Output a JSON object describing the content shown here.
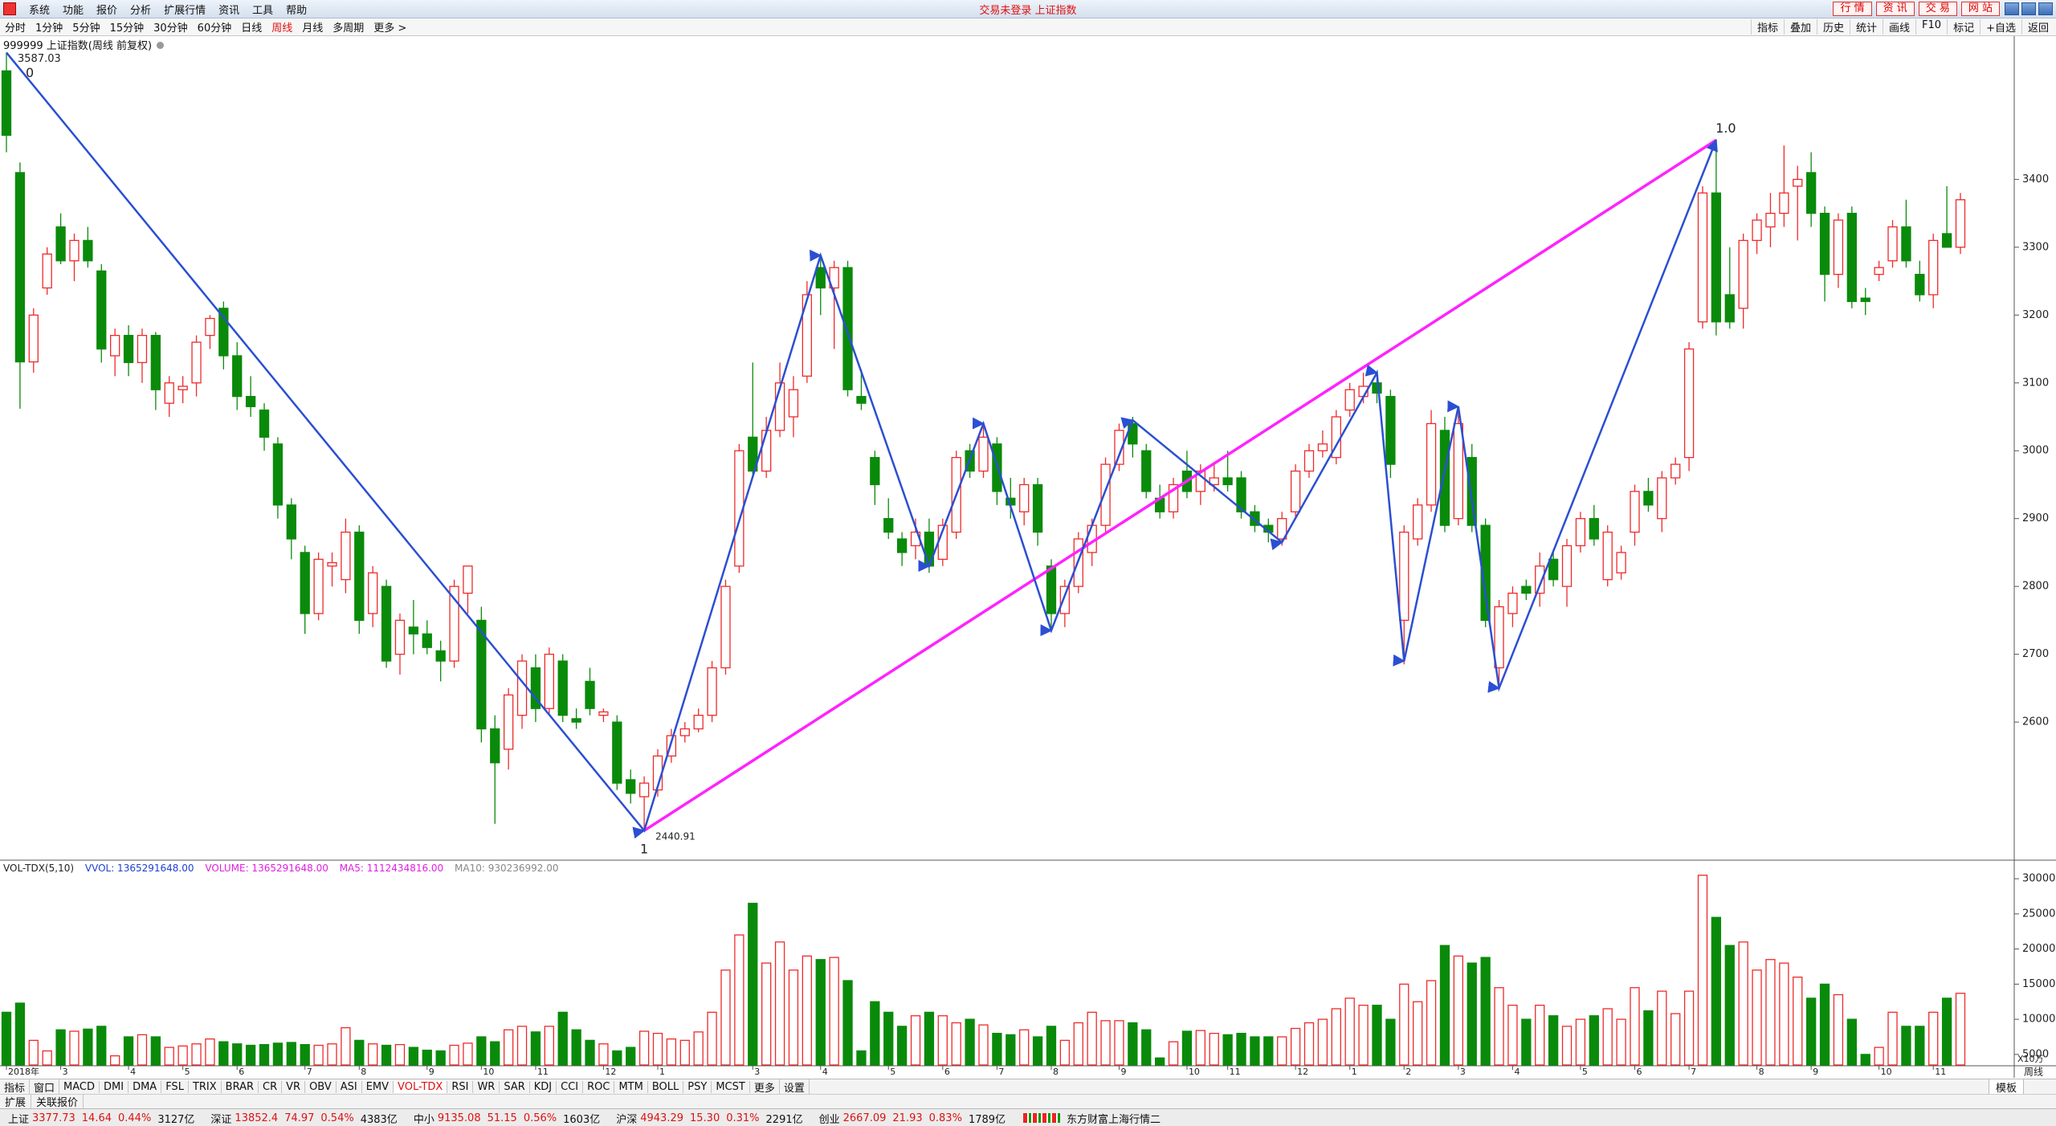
{
  "menu": [
    "系统",
    "功能",
    "报价",
    "分析",
    "扩展行情",
    "资讯",
    "工具",
    "帮助"
  ],
  "title_center": "交易未登录 上证指数",
  "top_buttons": [
    "行 情",
    "资 讯",
    "交 易",
    "网 站"
  ],
  "periods": [
    "分时",
    "1分钟",
    "5分钟",
    "15分钟",
    "30分钟",
    "60分钟",
    "日线",
    "周线",
    "月线",
    "多周期",
    "更多 >"
  ],
  "active_period": 7,
  "tools": [
    "指标",
    "叠加",
    "历史",
    "统计",
    "画线",
    "F10",
    "标记",
    "+自选",
    "返回"
  ],
  "chart_data": [
    {
      "type": "candlestick",
      "title": "999999 上证指数(周线 前复权)",
      "colors": {
        "up": "#ee2a2a",
        "down": "#0a8a0a"
      },
      "open": [
        3560,
        3410,
        3131,
        3240,
        3330,
        3280,
        3310,
        3265,
        3140,
        3170,
        3130,
        3170,
        3070,
        3090,
        3100,
        3170,
        3210,
        3140,
        3080,
        3060,
        3010,
        2920,
        2850,
        2760,
        2830,
        2810,
        2880,
        2760,
        2800,
        2700,
        2740,
        2730,
        2705,
        2690,
        2790,
        2750,
        2590,
        2560,
        2610,
        2680,
        2620,
        2690,
        2605,
        2660,
        2610,
        2600,
        2515,
        2490,
        2500,
        2550,
        2580,
        2590,
        2610,
        2680,
        2830,
        3020,
        2970,
        3030,
        3050,
        3110,
        3270,
        3240,
        3270,
        3080,
        2990,
        2900,
        2870,
        2860,
        2880,
        2840,
        2880,
        3000,
        2970,
        3010,
        2930,
        2910,
        2950,
        2830,
        2760,
        2800,
        2850,
        2890,
        2980,
        3040,
        3000,
        2930,
        2910,
        2970,
        2940,
        2950,
        2960,
        2960,
        2910,
        2890,
        2870,
        2910,
        2970,
        3000,
        2990,
        3060,
        3080,
        3100,
        3080,
        2750,
        2870,
        2920,
        3030,
        2900,
        2990,
        2890,
        2680,
        2760,
        2800,
        2790,
        2840,
        2800,
        2860,
        2900,
        2810,
        2820,
        2880,
        2940,
        2900,
        2960,
        2990,
        3190,
        3380,
        3230,
        3210,
        3310,
        3330,
        3350,
        3390,
        3410,
        3350,
        3260,
        3350,
        3225,
        3260,
        3280,
        3330,
        3260,
        3230,
        3320,
        3300
      ],
      "high": [
        3587,
        3425,
        3210,
        3300,
        3350,
        3320,
        3330,
        3275,
        3180,
        3185,
        3180,
        3175,
        3110,
        3110,
        3170,
        3200,
        3220,
        3160,
        3110,
        3070,
        3020,
        2930,
        2860,
        2850,
        2850,
        2900,
        2890,
        2830,
        2810,
        2760,
        2780,
        2750,
        2720,
        2810,
        2830,
        2770,
        2610,
        2650,
        2700,
        2700,
        2710,
        2700,
        2620,
        2680,
        2620,
        2610,
        2530,
        2520,
        2560,
        2590,
        2600,
        2620,
        2690,
        2810,
        3010,
        3130,
        3050,
        3130,
        3110,
        3250,
        3288,
        3280,
        3280,
        3120,
        3000,
        2930,
        2880,
        2900,
        2900,
        2900,
        3000,
        3010,
        3040,
        3020,
        2960,
        2960,
        2960,
        2840,
        2810,
        2880,
        2900,
        2990,
        3040,
        3050,
        3010,
        2950,
        2960,
        3000,
        2980,
        2980,
        3000,
        2970,
        2920,
        2900,
        2910,
        2980,
        3010,
        3030,
        3060,
        3100,
        3115,
        3110,
        3090,
        2890,
        2930,
        3060,
        3050,
        3065,
        3010,
        2900,
        2780,
        2800,
        2810,
        2850,
        2850,
        2870,
        2910,
        2920,
        2890,
        2860,
        2950,
        2960,
        2970,
        2990,
        3160,
        3390,
        3458,
        3300,
        3320,
        3350,
        3380,
        3450,
        3420,
        3440,
        3360,
        3350,
        3360,
        3240,
        3280,
        3340,
        3370,
        3280,
        3320,
        3390,
        3380
      ],
      "low": [
        3440,
        3062,
        3115,
        3230,
        3275,
        3250,
        3270,
        3130,
        3110,
        3110,
        3100,
        3060,
        3050,
        3070,
        3080,
        3150,
        3120,
        3060,
        3050,
        3000,
        2900,
        2840,
        2730,
        2750,
        2800,
        2790,
        2730,
        2740,
        2680,
        2670,
        2700,
        2700,
        2660,
        2680,
        2760,
        2570,
        2450,
        2530,
        2590,
        2600,
        2610,
        2600,
        2590,
        2610,
        2600,
        2500,
        2480,
        2440,
        2490,
        2540,
        2570,
        2585,
        2600,
        2670,
        2820,
        2960,
        2960,
        3020,
        3020,
        3100,
        3200,
        3150,
        3080,
        3060,
        2920,
        2870,
        2830,
        2840,
        2820,
        2830,
        2870,
        2960,
        2960,
        2920,
        2900,
        2890,
        2860,
        2735,
        2740,
        2790,
        2830,
        2880,
        2970,
        2990,
        2930,
        2900,
        2900,
        2930,
        2920,
        2940,
        2940,
        2900,
        2880,
        2865,
        2860,
        2900,
        2960,
        2990,
        2980,
        3050,
        3070,
        3070,
        2960,
        2685,
        2860,
        2910,
        2880,
        2890,
        2880,
        2740,
        2650,
        2740,
        2780,
        2770,
        2800,
        2770,
        2850,
        2860,
        2800,
        2810,
        2860,
        2910,
        2880,
        2950,
        2970,
        3180,
        3170,
        3180,
        3180,
        3290,
        3300,
        3330,
        3310,
        3330,
        3220,
        3240,
        3210,
        3200,
        3250,
        3270,
        3270,
        3220,
        3210,
        3300,
        3290
      ],
      "close": [
        3465,
        3131,
        3200,
        3290,
        3280,
        3310,
        3280,
        3150,
        3170,
        3130,
        3170,
        3090,
        3100,
        3095,
        3160,
        3195,
        3140,
        3080,
        3065,
        3020,
        2920,
        2870,
        2760,
        2840,
        2835,
        2880,
        2750,
        2820,
        2690,
        2750,
        2730,
        2710,
        2690,
        2800,
        2830,
        2590,
        2540,
        2640,
        2690,
        2620,
        2700,
        2610,
        2600,
        2620,
        2615,
        2510,
        2495,
        2510,
        2550,
        2580,
        2590,
        2610,
        2680,
        2800,
        3000,
        2970,
        3030,
        3100,
        3090,
        3230,
        3240,
        3270,
        3090,
        3070,
        2950,
        2880,
        2850,
        2880,
        2830,
        2890,
        2990,
        2970,
        3020,
        2940,
        2920,
        2950,
        2880,
        2760,
        2800,
        2870,
        2890,
        2980,
        3030,
        3010,
        2940,
        2910,
        2950,
        2940,
        2970,
        2960,
        2950,
        2910,
        2890,
        2880,
        2900,
        2970,
        3000,
        3010,
        3050,
        3090,
        3095,
        3085,
        2980,
        2880,
        2920,
        3040,
        2890,
        3040,
        2890,
        2750,
        2770,
        2790,
        2790,
        2830,
        2810,
        2860,
        2900,
        2870,
        2880,
        2850,
        2940,
        2920,
        2960,
        2980,
        3150,
        3380,
        3190,
        3190,
        3310,
        3340,
        3350,
        3380,
        3400,
        3350,
        3260,
        3340,
        3220,
        3220,
        3270,
        3330,
        3280,
        3230,
        3310,
        3300,
        3370
      ],
      "ylim": [
        2400,
        3610
      ],
      "yticks": [
        2600,
        2700,
        2800,
        2900,
        3000,
        3100,
        3200,
        3300,
        3400
      ],
      "drawings": {
        "zigzag": {
          "color": "#2b4fd2",
          "x": [
            0,
            47,
            60,
            68,
            72,
            77,
            83,
            94,
            101,
            103,
            107,
            110,
            126
          ],
          "y": [
            3587,
            2440,
            3288,
            2830,
            3040,
            2735,
            3045,
            2865,
            3115,
            2690,
            3065,
            2650,
            3458
          ]
        },
        "trend": {
          "color": "#ff22ff",
          "x": [
            47,
            126
          ],
          "y": [
            2440,
            3458
          ]
        }
      },
      "annotations": {
        "high_label": "3587.03",
        "low_label": "2440.91",
        "wave_start": "0",
        "wave_low": "1",
        "wave_end": "1.0"
      }
    },
    {
      "type": "bar",
      "header": {
        "name": "VOL-TDX(5,10)",
        "vvol": "VVOL: 1365291648.00",
        "volume": "VOLUME: 1365291648.00",
        "ma5": "MA5: 1112434816.00",
        "ma10": "MA10: 930236992.00"
      },
      "values": [
        11000,
        12300,
        7000,
        5500,
        8500,
        8300,
        8600,
        9000,
        4800,
        7500,
        7800,
        7500,
        6000,
        6200,
        6500,
        7200,
        6800,
        6500,
        6300,
        6400,
        6600,
        6700,
        6400,
        6300,
        6500,
        8800,
        7000,
        6500,
        6300,
        6400,
        6000,
        5600,
        5500,
        6300,
        6600,
        7500,
        6800,
        8500,
        9000,
        8200,
        9000,
        11000,
        8500,
        7000,
        6500,
        5500,
        6000,
        8300,
        8000,
        7200,
        7000,
        8200,
        11000,
        17000,
        22000,
        26500,
        18000,
        21000,
        17000,
        19000,
        18500,
        18800,
        15500,
        5500,
        12500,
        11000,
        9000,
        10500,
        11000,
        10500,
        9500,
        10000,
        9200,
        8000,
        7800,
        8500,
        7500,
        9000,
        7000,
        9500,
        11000,
        9800,
        9800,
        9500,
        8500,
        4500,
        6800,
        8300,
        8400,
        8000,
        7800,
        8000,
        7500,
        7500,
        7500,
        8700,
        9500,
        10000,
        11500,
        13000,
        12000,
        12000,
        10000,
        15000,
        12500,
        15500,
        20500,
        19000,
        18000,
        18800,
        14500,
        12000,
        10000,
        12000,
        10500,
        9000,
        10000,
        10500,
        11500,
        10000,
        14500,
        11200,
        14000,
        10800,
        14000,
        30500,
        24500,
        20500,
        21000,
        17000,
        18500,
        18000,
        16000,
        13000,
        15000,
        13500,
        10000,
        5000,
        6000,
        11000,
        9000,
        9000,
        11000,
        13000,
        13700
      ],
      "ylim": [
        3500,
        32300
      ],
      "yticks": [
        5000,
        10000,
        15000,
        20000,
        25000,
        30000
      ],
      "unit_label": "X10万",
      "period_label": "周线",
      "xticks": [
        {
          "value": 0,
          "label": "2018年"
        },
        {
          "value": 4,
          "label": "3"
        },
        {
          "value": 9,
          "label": "4"
        },
        {
          "value": 13,
          "label": "5"
        },
        {
          "value": 17,
          "label": "6"
        },
        {
          "value": 22,
          "label": "7"
        },
        {
          "value": 26,
          "label": "8"
        },
        {
          "value": 31,
          "label": "9"
        },
        {
          "value": 35,
          "label": "10"
        },
        {
          "value": 39,
          "label": "11"
        },
        {
          "value": 44,
          "label": "12"
        },
        {
          "value": 48,
          "label": "1"
        },
        {
          "value": 55,
          "label": "3"
        },
        {
          "value": 60,
          "label": "4"
        },
        {
          "value": 65,
          "label": "5"
        },
        {
          "value": 69,
          "label": "6"
        },
        {
          "value": 73,
          "label": "7"
        },
        {
          "value": 77,
          "label": "8"
        },
        {
          "value": 82,
          "label": "9"
        },
        {
          "value": 87,
          "label": "10"
        },
        {
          "value": 90,
          "label": "11"
        },
        {
          "value": 95,
          "label": "12"
        },
        {
          "value": 99,
          "label": "1"
        },
        {
          "value": 103,
          "label": "2"
        },
        {
          "value": 107,
          "label": "3"
        },
        {
          "value": 111,
          "label": "4"
        },
        {
          "value": 116,
          "label": "5"
        },
        {
          "value": 120,
          "label": "6"
        },
        {
          "value": 124,
          "label": "7"
        },
        {
          "value": 129,
          "label": "8"
        },
        {
          "value": 133,
          "label": "9"
        },
        {
          "value": 138,
          "label": "10"
        },
        {
          "value": 142,
          "label": "11"
        }
      ]
    }
  ],
  "tabs": [
    "指标",
    "窗口",
    "MACD",
    "DMI",
    "DMA",
    "FSL",
    "TRIX",
    "BRAR",
    "CR",
    "VR",
    "OBV",
    "ASI",
    "EMV",
    "VOL-TDX",
    "RSI",
    "WR",
    "SAR",
    "KDJ",
    "CCI",
    "ROC",
    "MTM",
    "BOLL",
    "PSY",
    "MCST",
    "更多",
    "设置"
  ],
  "active_tab": 13,
  "template_label": "模板",
  "sub_tabs": [
    "扩展",
    "关联报价"
  ],
  "status": [
    {
      "name": "上证",
      "price": "3377.73",
      "change": "14.64",
      "pct": "0.44%",
      "amount": "3127亿"
    },
    {
      "name": "深证",
      "price": "13852.4",
      "change": "74.97",
      "pct": "0.54%",
      "amount": "4383亿"
    },
    {
      "name": "中小",
      "price": "9135.08",
      "change": "51.15",
      "pct": "0.56%",
      "amount": "1603亿"
    },
    {
      "name": "沪深",
      "price": "4943.29",
      "change": "15.30",
      "pct": "0.31%",
      "amount": "2291亿"
    },
    {
      "name": "创业",
      "price": "2667.09",
      "change": "21.93",
      "pct": "0.83%",
      "amount": "1789亿"
    }
  ],
  "feed": "东方财富上海行情二"
}
